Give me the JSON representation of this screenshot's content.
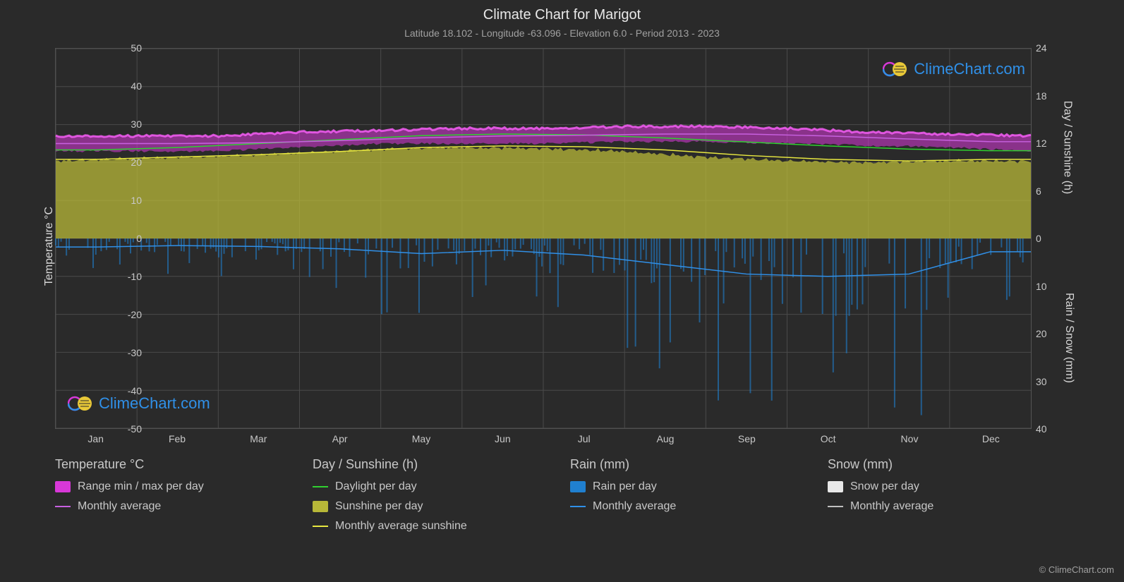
{
  "title": "Climate Chart for Marigot",
  "subtitle": "Latitude 18.102 - Longitude -63.096 - Elevation 6.0 - Period 2013 - 2023",
  "chart": {
    "background": "#2a2a2a",
    "plot_bg": "#2a2a2a",
    "grid_color": "#4a4a4a",
    "border_color": "#555555",
    "x": {
      "labels": [
        "Jan",
        "Feb",
        "Mar",
        "Apr",
        "May",
        "Jun",
        "Jul",
        "Aug",
        "Sep",
        "Oct",
        "Nov",
        "Dec"
      ]
    },
    "y_left": {
      "title": "Temperature °C",
      "min": -50,
      "max": 50,
      "tick_step": 10,
      "ticks": [
        50,
        40,
        30,
        20,
        10,
        0,
        -10,
        -20,
        -30,
        -40,
        -50
      ]
    },
    "y_right_top": {
      "title": "Day / Sunshine (h)",
      "min": 0,
      "max": 24,
      "tick_step": 6,
      "ticks": [
        24,
        18,
        12,
        6,
        0
      ]
    },
    "y_right_bottom": {
      "title": "Rain / Snow (mm)",
      "min": 0,
      "max": 40,
      "tick_step": 10,
      "ticks": [
        0,
        10,
        20,
        30,
        40
      ]
    },
    "series": {
      "temp_range_fill": {
        "color": "#d838d8",
        "glow": "#ff60ff",
        "min_per_month": [
          23,
          23,
          23,
          24,
          25,
          25,
          25,
          25.5,
          25.5,
          25,
          24.5,
          24
        ],
        "max_per_month": [
          27,
          27,
          27,
          28,
          28.5,
          29,
          29,
          29.5,
          29.5,
          29,
          28,
          27.5
        ]
      },
      "temp_monthly_avg": {
        "color": "#c860e0",
        "width": 1.5,
        "values": [
          25,
          25,
          25.2,
          25.8,
          26.5,
          27,
          27.2,
          27.5,
          27.5,
          27,
          26.2,
          25.5
        ]
      },
      "daylight": {
        "color": "#30d030",
        "width": 1.5,
        "values_h": [
          11.2,
          11.5,
          12,
          12.5,
          13,
          13.2,
          13.1,
          12.7,
          12.2,
          11.7,
          11.3,
          11.1
        ]
      },
      "sunshine_fill": {
        "color": "#b8b838",
        "opacity": 0.75,
        "values_h": [
          10,
          10.3,
          10.6,
          11,
          11.5,
          11.7,
          11.6,
          11.2,
          10.5,
          10,
          9.8,
          10
        ]
      },
      "sunshine_avg_line": {
        "color": "#e8e840",
        "width": 1.5,
        "values_h": [
          10,
          10.3,
          10.6,
          11,
          11.5,
          11.7,
          11.6,
          11.2,
          10.5,
          10,
          9.8,
          10
        ]
      },
      "rain_daily_bars": {
        "color": "#2080d0",
        "opacity": 0.6,
        "sample_values_mm": [
          1,
          2,
          0,
          3,
          1,
          5,
          2,
          8,
          3,
          1,
          0,
          2,
          4,
          1,
          6,
          2,
          0,
          3,
          1,
          7,
          2,
          5,
          12,
          3,
          1,
          0,
          2,
          4,
          8,
          1,
          3,
          2,
          6,
          1,
          0,
          15
        ]
      },
      "rain_monthly_avg": {
        "color": "#3090e8",
        "width": 1.5,
        "values_mm": [
          1.8,
          1.5,
          1.7,
          2.2,
          3.2,
          2.5,
          3.5,
          5.5,
          7.5,
          8,
          7.5,
          2.8
        ]
      },
      "snow_daily": {
        "color": "#e8e8e8",
        "values_mm": [
          0,
          0,
          0,
          0,
          0,
          0,
          0,
          0,
          0,
          0,
          0,
          0
        ]
      },
      "snow_monthly_avg": {
        "color": "#c0c0c0",
        "values_mm": [
          0,
          0,
          0,
          0,
          0,
          0,
          0,
          0,
          0,
          0,
          0,
          0
        ]
      }
    }
  },
  "legend": {
    "cols": [
      {
        "header": "Temperature °C",
        "items": [
          {
            "label": "Range min / max per day",
            "swatch_type": "block",
            "color": "#d838d8"
          },
          {
            "label": "Monthly average",
            "swatch_type": "line",
            "color": "#c860e0"
          }
        ]
      },
      {
        "header": "Day / Sunshine (h)",
        "items": [
          {
            "label": "Daylight per day",
            "swatch_type": "line",
            "color": "#30d030"
          },
          {
            "label": "Sunshine per day",
            "swatch_type": "block",
            "color": "#b8b838"
          },
          {
            "label": "Monthly average sunshine",
            "swatch_type": "line",
            "color": "#e8e840"
          }
        ]
      },
      {
        "header": "Rain (mm)",
        "items": [
          {
            "label": "Rain per day",
            "swatch_type": "block",
            "color": "#2080d0"
          },
          {
            "label": "Monthly average",
            "swatch_type": "line",
            "color": "#3090e8"
          }
        ]
      },
      {
        "header": "Snow (mm)",
        "items": [
          {
            "label": "Snow per day",
            "swatch_type": "block",
            "color": "#e8e8e8"
          },
          {
            "label": "Monthly average",
            "swatch_type": "line",
            "color": "#c0c0c0"
          }
        ]
      }
    ]
  },
  "watermark": {
    "text": "ClimeChart.com",
    "text_color": "#3090e8"
  },
  "copyright": "© ClimeChart.com"
}
